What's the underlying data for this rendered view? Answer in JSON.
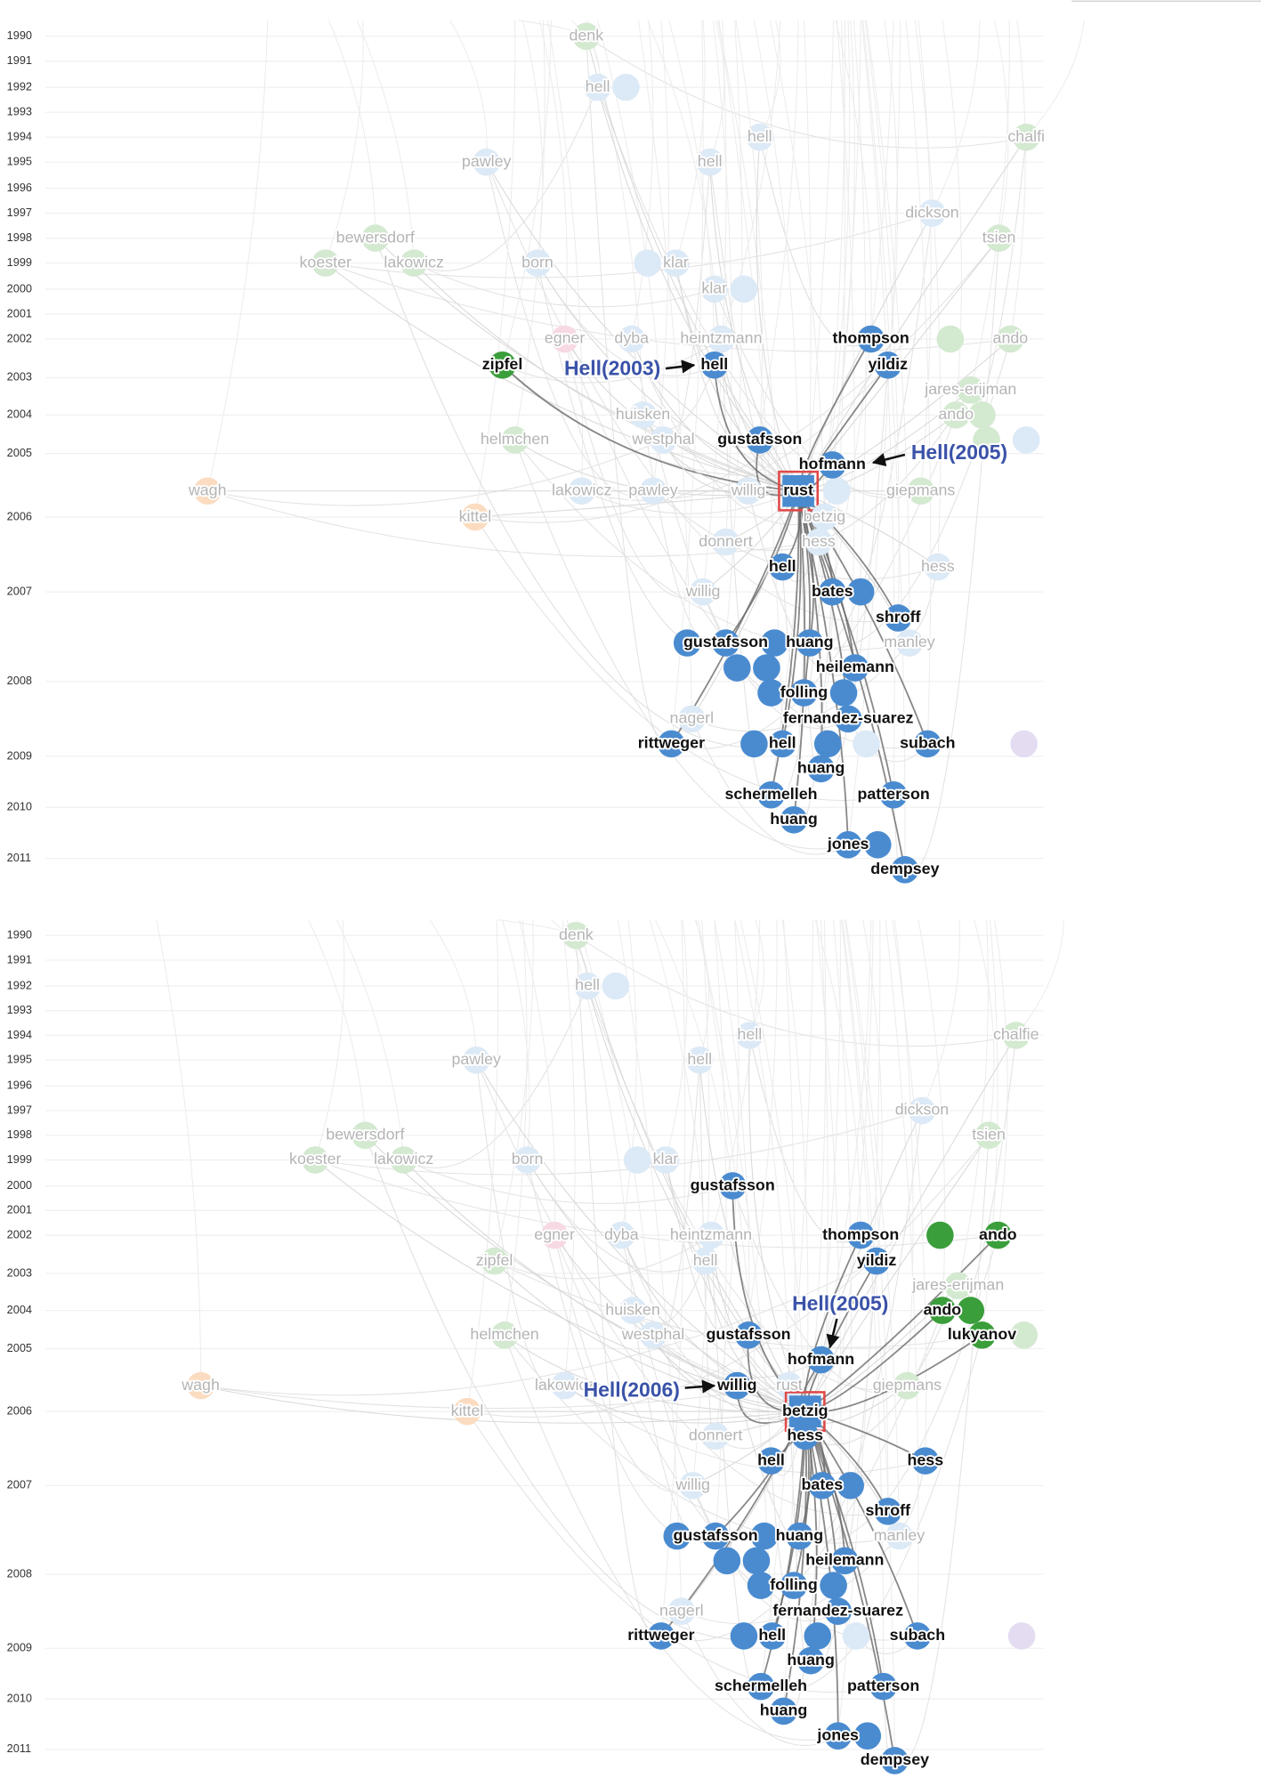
{
  "panels": [
    {
      "years": [
        "1990",
        "1991",
        "1992",
        "1993",
        "1994",
        "1995",
        "1996",
        "1997",
        "1998",
        "1999",
        "2000",
        "2001",
        "2002",
        "2003",
        "2004",
        "2005",
        "2006",
        "2007",
        "2008",
        "2009",
        "2010",
        "2011"
      ],
      "nodes": [
        {
          "label": "denk",
          "color": "#d3e9d0"
        },
        {
          "label": "hell",
          "color": "#dce9f6"
        },
        {
          "label": "hell",
          "color": "#dce9f6"
        },
        {
          "label": "chalfi",
          "color": "#d3e9d0"
        },
        {
          "label": "pawley",
          "color": "#dce9f6"
        },
        {
          "label": "hell",
          "color": "#dce9f6"
        },
        {
          "label": "dickson",
          "color": "#dce9f6"
        },
        {
          "label": "bewersdorf",
          "color": "#d3e9d0"
        },
        {
          "label": "tsien",
          "color": "#d3e9d0"
        },
        {
          "label": "koester",
          "color": "#d3e9d0"
        },
        {
          "label": "lakowicz",
          "color": "#d3e9d0"
        },
        {
          "label": "born",
          "color": "#dce9f6"
        },
        {
          "label": "klar",
          "color": "#dce9f6"
        },
        {
          "label": "klar",
          "color": "#dce9f6"
        },
        {
          "label": "egner",
          "color": "#f7d9e3"
        },
        {
          "label": "dyba",
          "color": "#dce9f6"
        },
        {
          "label": "heintzmann",
          "color": "#dce9f6"
        },
        {
          "label": "thompson",
          "color": "#4a8bd0"
        },
        {
          "label": "ando",
          "color": "#d3e9d0"
        },
        {
          "label": "zipfel",
          "color": "#3a9e3a"
        },
        {
          "label": "hell",
          "color": "#4a8bd0"
        },
        {
          "label": "yildiz",
          "color": "#4a8bd0"
        },
        {
          "label": "jares-erijman",
          "color": "#d3e9d0"
        },
        {
          "label": "huisken",
          "color": "#dce9f6"
        },
        {
          "label": "ando",
          "color": "#d3e9d0"
        },
        {
          "label": "helmchen",
          "color": "#d3e9d0"
        },
        {
          "label": "westphal",
          "color": "#dce9f6"
        },
        {
          "label": "gustafsson",
          "color": "#4a8bd0"
        },
        {
          "label": "hofmann",
          "color": "#4a8bd0"
        },
        {
          "label": "wagh",
          "color": "#fbdcc0"
        },
        {
          "label": "lakowicz",
          "color": "#dce9f6"
        },
        {
          "label": "pawley",
          "color": "#dce9f6"
        },
        {
          "label": "willig",
          "color": "#dce9f6"
        },
        {
          "label": "rust",
          "color": "#4a8bd0"
        },
        {
          "label": "giepmans",
          "color": "#d3e9d0"
        },
        {
          "label": "kittel",
          "color": "#fbdcc0"
        },
        {
          "label": "betzig",
          "color": "#dce9f6"
        },
        {
          "label": "donnert",
          "color": "#dce9f6"
        },
        {
          "label": "hess",
          "color": "#dce9f6"
        },
        {
          "label": "hell",
          "color": "#4a8bd0"
        },
        {
          "label": "hess",
          "color": "#dce9f6"
        },
        {
          "label": "willig",
          "color": "#dce9f6"
        },
        {
          "label": "bates",
          "color": "#4a8bd0"
        },
        {
          "label": "shroff",
          "color": "#4a8bd0"
        },
        {
          "label": "gustafsson",
          "color": "#4a8bd0"
        },
        {
          "label": "huang",
          "color": "#4a8bd0"
        },
        {
          "label": "manley",
          "color": "#dce9f6"
        },
        {
          "label": "heilemann",
          "color": "#4a8bd0"
        },
        {
          "label": "folling",
          "color": "#4a8bd0"
        },
        {
          "label": "nagerl",
          "color": "#dce9f6"
        },
        {
          "label": "fernandez-suarez",
          "color": "#4a8bd0"
        },
        {
          "label": "rittweger",
          "color": "#4a8bd0"
        },
        {
          "label": "hell",
          "color": "#4a8bd0"
        },
        {
          "label": "subach",
          "color": "#4a8bd0"
        },
        {
          "label": "huang",
          "color": "#4a8bd0"
        },
        {
          "label": "schermelleh",
          "color": "#4a8bd0"
        },
        {
          "label": "patterson",
          "color": "#4a8bd0"
        },
        {
          "label": "huang",
          "color": "#4a8bd0"
        },
        {
          "label": "jones",
          "color": "#4a8bd0"
        },
        {
          "label": "dempsey",
          "color": "#4a8bd0"
        }
      ],
      "annotations": [
        {
          "text": "Hell(2003)"
        },
        {
          "text": "Hell(2005)"
        }
      ]
    },
    {
      "years": [
        "1990",
        "1991",
        "1992",
        "1993",
        "1994",
        "1995",
        "1996",
        "1997",
        "1998",
        "1999",
        "2000",
        "2001",
        "2002",
        "2003",
        "2004",
        "2005",
        "2006",
        "2007",
        "2008",
        "2009",
        "2010",
        "2011"
      ],
      "nodes": [
        {
          "label": "denk",
          "color": "#d3e9d0"
        },
        {
          "label": "hell",
          "color": "#dce9f6"
        },
        {
          "label": "hell",
          "color": "#dce9f6"
        },
        {
          "label": "chalfie",
          "color": "#d3e9d0"
        },
        {
          "label": "pawley",
          "color": "#dce9f6"
        },
        {
          "label": "hell",
          "color": "#dce9f6"
        },
        {
          "label": "dickson",
          "color": "#dce9f6"
        },
        {
          "label": "bewersdorf",
          "color": "#d3e9d0"
        },
        {
          "label": "tsien",
          "color": "#d3e9d0"
        },
        {
          "label": "koester",
          "color": "#d3e9d0"
        },
        {
          "label": "lakowicz",
          "color": "#d3e9d0"
        },
        {
          "label": "born",
          "color": "#dce9f6"
        },
        {
          "label": "klar",
          "color": "#dce9f6"
        },
        {
          "label": "gustafsson",
          "color": "#4a8bd0"
        },
        {
          "label": "egner",
          "color": "#f7d9e3"
        },
        {
          "label": "dyba",
          "color": "#dce9f6"
        },
        {
          "label": "heintzmann",
          "color": "#dce9f6"
        },
        {
          "label": "thompson",
          "color": "#4a8bd0"
        },
        {
          "label": "ando",
          "color": "#3a9e3a"
        },
        {
          "label": "zipfel",
          "color": "#d3e9d0"
        },
        {
          "label": "hell",
          "color": "#dce9f6"
        },
        {
          "label": "yildiz",
          "color": "#4a8bd0"
        },
        {
          "label": "jares-erijman",
          "color": "#d3e9d0"
        },
        {
          "label": "huisken",
          "color": "#dce9f6"
        },
        {
          "label": "ando",
          "color": "#3a9e3a"
        },
        {
          "label": "helmchen",
          "color": "#d3e9d0"
        },
        {
          "label": "westphal",
          "color": "#dce9f6"
        },
        {
          "label": "gustafsson",
          "color": "#4a8bd0"
        },
        {
          "label": "lukyanov",
          "color": "#3a9e3a"
        },
        {
          "label": "hofmann",
          "color": "#4a8bd0"
        },
        {
          "label": "wagh",
          "color": "#fbdcc0"
        },
        {
          "label": "lakowicz",
          "color": "#dce9f6"
        },
        {
          "label": "willig",
          "color": "#4a8bd0"
        },
        {
          "label": "rust",
          "color": "#dce9f6"
        },
        {
          "label": "giepmans",
          "color": "#d3e9d0"
        },
        {
          "label": "kittel",
          "color": "#fbdcc0"
        },
        {
          "label": "betzig",
          "color": "#4a8bd0"
        },
        {
          "label": "hess",
          "color": "#4a8bd0"
        },
        {
          "label": "donnert",
          "color": "#dce9f6"
        },
        {
          "label": "hell",
          "color": "#4a8bd0"
        },
        {
          "label": "hess",
          "color": "#4a8bd0"
        },
        {
          "label": "willig",
          "color": "#dce9f6"
        },
        {
          "label": "bates",
          "color": "#4a8bd0"
        },
        {
          "label": "shroff",
          "color": "#4a8bd0"
        },
        {
          "label": "gustafsson",
          "color": "#4a8bd0"
        },
        {
          "label": "huang",
          "color": "#4a8bd0"
        },
        {
          "label": "manley",
          "color": "#dce9f6"
        },
        {
          "label": "heilemann",
          "color": "#4a8bd0"
        },
        {
          "label": "folling",
          "color": "#4a8bd0"
        },
        {
          "label": "nagerl",
          "color": "#dce9f6"
        },
        {
          "label": "fernandez-suarez",
          "color": "#4a8bd0"
        },
        {
          "label": "rittweger",
          "color": "#4a8bd0"
        },
        {
          "label": "hell",
          "color": "#4a8bd0"
        },
        {
          "label": "subach",
          "color": "#4a8bd0"
        },
        {
          "label": "huang",
          "color": "#4a8bd0"
        },
        {
          "label": "schermelleh",
          "color": "#4a8bd0"
        },
        {
          "label": "patterson",
          "color": "#4a8bd0"
        },
        {
          "label": "huang",
          "color": "#4a8bd0"
        },
        {
          "label": "jones",
          "color": "#4a8bd0"
        },
        {
          "label": "dempsey",
          "color": "#4a8bd0"
        }
      ],
      "annotations": [
        {
          "text": "Hell(2005)"
        },
        {
          "text": "Hell(2006)"
        }
      ]
    }
  ]
}
